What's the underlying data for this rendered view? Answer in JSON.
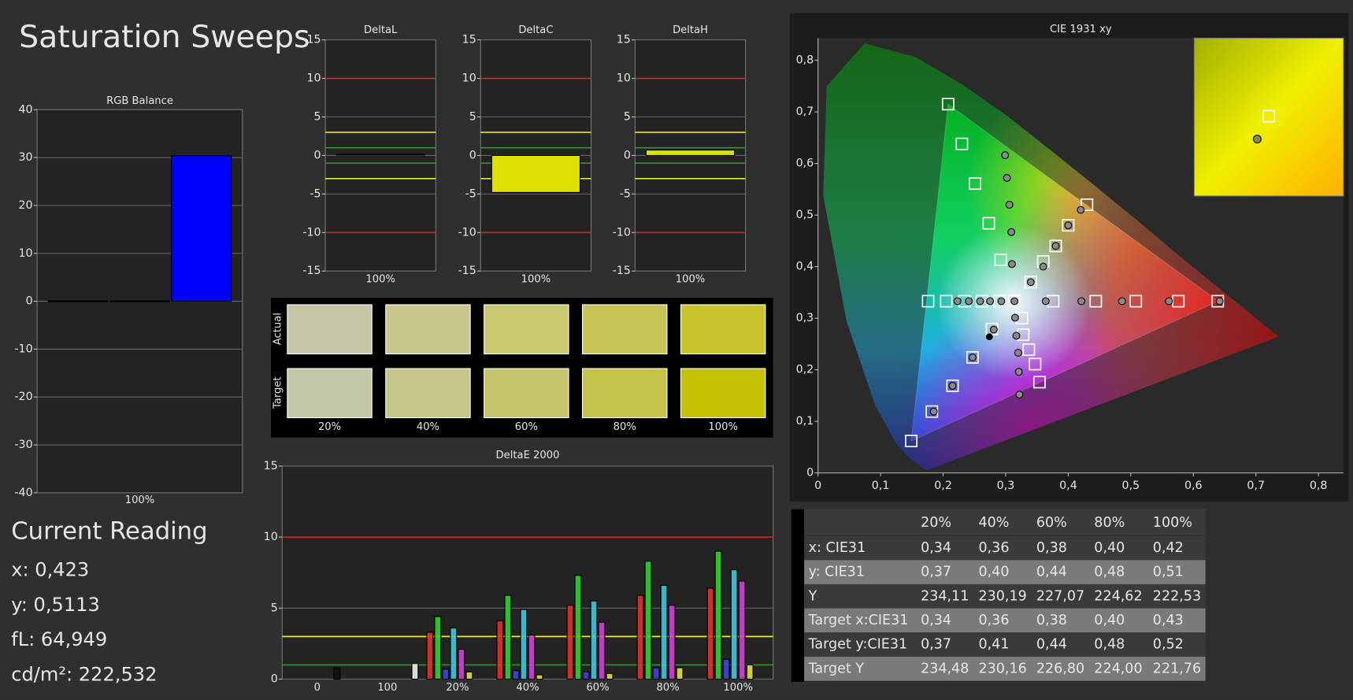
{
  "title": "Saturation Sweeps",
  "chart_data": [
    {
      "type": "bar",
      "title": "RGB Balance",
      "categories": [
        "100%"
      ],
      "series": [
        {
          "color": "#ff0000",
          "values": [
            0
          ]
        },
        {
          "color": "#00c000",
          "values": [
            0
          ]
        },
        {
          "color": "#0000ff",
          "values": [
            30.4
          ]
        }
      ],
      "ylim": [
        -40,
        40
      ],
      "yticks": [
        -40,
        -30,
        -20,
        -10,
        0,
        10,
        20,
        30,
        40
      ],
      "grid": true
    },
    {
      "type": "bar",
      "title": "DeltaL",
      "categories": [
        "100%"
      ],
      "values": [
        0.1
      ],
      "color": "#e0e000",
      "ylim": [
        -15,
        15
      ],
      "yticks": [
        -15,
        -10,
        -5,
        0,
        5,
        10,
        15
      ],
      "grid": true,
      "reference_lines": [
        {
          "value": 10,
          "color": "#e02020"
        },
        {
          "value": -10,
          "color": "#e02020"
        },
        {
          "value": 3,
          "color": "#e8e830"
        },
        {
          "value": -3,
          "color": "#e8e830"
        },
        {
          "value": 1,
          "color": "#2a9a2a"
        },
        {
          "value": -1,
          "color": "#2a9a2a"
        }
      ]
    },
    {
      "type": "bar",
      "title": "DeltaC",
      "categories": [
        "100%"
      ],
      "values": [
        -4.8
      ],
      "color": "#e0e000",
      "ylim": [
        -15,
        15
      ],
      "yticks": [
        -15,
        -10,
        -5,
        0,
        5,
        10,
        15
      ],
      "grid": true,
      "reference_lines": [
        {
          "value": 10,
          "color": "#e02020"
        },
        {
          "value": -10,
          "color": "#e02020"
        },
        {
          "value": 3,
          "color": "#e8e830"
        },
        {
          "value": -3,
          "color": "#e8e830"
        },
        {
          "value": 1,
          "color": "#2a9a2a"
        },
        {
          "value": -1,
          "color": "#2a9a2a"
        }
      ]
    },
    {
      "type": "bar",
      "title": "DeltaH",
      "categories": [
        "100%"
      ],
      "values": [
        0.7
      ],
      "color": "#e0e000",
      "ylim": [
        -15,
        15
      ],
      "yticks": [
        -15,
        -10,
        -5,
        0,
        5,
        10,
        15
      ],
      "grid": true,
      "reference_lines": [
        {
          "value": 10,
          "color": "#e02020"
        },
        {
          "value": -10,
          "color": "#e02020"
        },
        {
          "value": 3,
          "color": "#e8e830"
        },
        {
          "value": -3,
          "color": "#e8e830"
        },
        {
          "value": 1,
          "color": "#2a9a2a"
        },
        {
          "value": -1,
          "color": "#2a9a2a"
        }
      ]
    },
    {
      "type": "bar",
      "title": "DeltaE 2000",
      "categories": [
        "0",
        "100",
        "20%",
        "40%",
        "60%",
        "80%",
        "100%"
      ],
      "series": [
        {
          "color": "#e03030",
          "values": [
            null,
            null,
            3.3,
            4.1,
            5.2,
            5.9,
            6.4
          ]
        },
        {
          "color": "#30d030",
          "values": [
            null,
            null,
            4.4,
            5.9,
            7.3,
            8.3,
            9.0
          ]
        },
        {
          "color": "#4040e0",
          "values": [
            null,
            null,
            0.7,
            0.6,
            0.5,
            0.8,
            1.4
          ]
        },
        {
          "color": "#40c8d8",
          "values": [
            null,
            null,
            3.6,
            4.9,
            5.5,
            6.6,
            7.7
          ]
        },
        {
          "color": "#d040d0",
          "values": [
            null,
            null,
            2.1,
            3.1,
            4.0,
            5.2,
            6.9
          ]
        },
        {
          "color": "#e0e040",
          "values": [
            null,
            null,
            0.5,
            0.3,
            0.4,
            0.8,
            1.0
          ]
        },
        {
          "color": "#111111",
          "values": [
            0.8,
            null,
            null,
            null,
            null,
            null,
            null
          ]
        },
        {
          "color": "#f0f0f0",
          "values": [
            null,
            1.1,
            null,
            null,
            null,
            null,
            null
          ]
        }
      ],
      "ylim": [
        0,
        15
      ],
      "yticks": [
        0,
        5,
        10,
        15
      ],
      "grid": true,
      "reference_lines": [
        {
          "value": 10,
          "color": "#e02020"
        },
        {
          "value": 3,
          "color": "#e8e830"
        },
        {
          "value": 1,
          "color": "#2a9a2a"
        }
      ]
    },
    {
      "type": "scatter",
      "title": "CIE 1931 xy",
      "xlim": [
        0,
        0.84
      ],
      "ylim": [
        0,
        0.843
      ],
      "xticks": [
        0,
        {
          "value": 0.1,
          "label": "0,1"
        },
        {
          "value": 0.2,
          "label": "0,2"
        },
        {
          "value": 0.3,
          "label": "0,3"
        },
        {
          "value": 0.4,
          "label": "0,4"
        },
        {
          "value": 0.5,
          "label": "0,5"
        },
        {
          "value": 0.6,
          "label": "0,6"
        },
        {
          "value": 0.7,
          "label": "0,7"
        },
        {
          "value": 0.8,
          "label": "0,8"
        }
      ],
      "yticks": [
        0,
        {
          "value": 0.1,
          "label": "0,1"
        },
        {
          "value": 0.2,
          "label": "0,2"
        },
        {
          "value": 0.3,
          "label": "0,3"
        },
        {
          "value": 0.4,
          "label": "0,4"
        },
        {
          "value": 0.5,
          "label": "0,5"
        },
        {
          "value": 0.6,
          "label": "0,6"
        },
        {
          "value": 0.7,
          "label": "0,7"
        },
        {
          "value": 0.8,
          "label": "0,8"
        }
      ],
      "gamut": {
        "x": [
          0.64,
          0.208,
          0.149
        ],
        "y": [
          0.333,
          0.715,
          0.062
        ]
      },
      "series": [
        {
          "marker": "square",
          "color": "#ffffff",
          "x": [
            0.314,
            0.376,
            0.444,
            0.508,
            0.576,
            0.639,
            0.292,
            0.273,
            0.251,
            0.23,
            0.208,
            0.278,
            0.247,
            0.215,
            0.182,
            0.149,
            0.34,
            0.36,
            0.38,
            0.4,
            0.43,
            0.29,
            0.262,
            0.234,
            0.205,
            0.176,
            0.326,
            0.328,
            0.337,
            0.347,
            0.354
          ],
          "values": [
            0.333,
            0.333,
            0.333,
            0.333,
            0.333,
            0.333,
            0.413,
            0.484,
            0.561,
            0.638,
            0.715,
            0.279,
            0.224,
            0.169,
            0.119,
            0.062,
            0.37,
            0.41,
            0.44,
            0.48,
            0.52,
            0.333,
            0.333,
            0.333,
            0.333,
            0.333,
            0.3,
            0.268,
            0.239,
            0.211,
            0.176
          ]
        },
        {
          "marker": "circle",
          "color": "#8a8a8a",
          "x": [
            0.314,
            0.364,
            0.421,
            0.486,
            0.561,
            0.642,
            0.31,
            0.309,
            0.306,
            0.302,
            0.299,
            0.281,
            0.247,
            0.215,
            0.185,
            0.34,
            0.36,
            0.38,
            0.4,
            0.42,
            0.293,
            0.275,
            0.259,
            0.241,
            0.223,
            0.315,
            0.317,
            0.32,
            0.321,
            0.322
          ],
          "values": [
            0.333,
            0.333,
            0.333,
            0.333,
            0.333,
            0.333,
            0.405,
            0.467,
            0.52,
            0.572,
            0.616,
            0.278,
            0.224,
            0.169,
            0.119,
            0.37,
            0.4,
            0.44,
            0.48,
            0.51,
            0.333,
            0.333,
            0.333,
            0.333,
            0.333,
            0.301,
            0.266,
            0.233,
            0.196,
            0.152
          ]
        },
        {
          "marker": "dot",
          "color": "#000000",
          "x": [
            0.274
          ],
          "values": [
            0.264
          ]
        }
      ]
    }
  ],
  "swatches": {
    "row_labels": [
      "Actual",
      "Target"
    ],
    "column_labels": [
      "20%",
      "40%",
      "60%",
      "80%",
      "100%"
    ],
    "actual": [
      "#c6c6a6",
      "#c8c78e",
      "#c9c770",
      "#c8c458",
      "#c9c42e"
    ],
    "target": [
      "#c5c6a4",
      "#c6c68a",
      "#c7c66a",
      "#c5c44a",
      "#c4c100"
    ]
  },
  "current_reading": {
    "title": "Current Reading",
    "lines": [
      "x: 0,423",
      "y: 0,5113",
      "fL: 64,949",
      "cd/m²: 222,532"
    ]
  },
  "table": {
    "header": [
      "20%",
      "40%",
      "60%",
      "80%",
      "100%"
    ],
    "rows": [
      [
        "x: CIE31",
        "0,34",
        "0,36",
        "0,38",
        "0,40",
        "0,42"
      ],
      [
        "y: CIE31",
        "0,37",
        "0,40",
        "0,44",
        "0,48",
        "0,51"
      ],
      [
        "Y",
        "234,11",
        "230,19",
        "227,07",
        "224,62",
        "222,53"
      ],
      [
        "Target x:CIE31",
        "0,34",
        "0,36",
        "0,38",
        "0,40",
        "0,43"
      ],
      [
        "Target y:CIE31",
        "0,37",
        "0,41",
        "0,44",
        "0,48",
        "0,52"
      ],
      [
        "Target Y",
        "234,48",
        "230,16",
        "226,80",
        "224,00",
        "221,76"
      ]
    ]
  }
}
